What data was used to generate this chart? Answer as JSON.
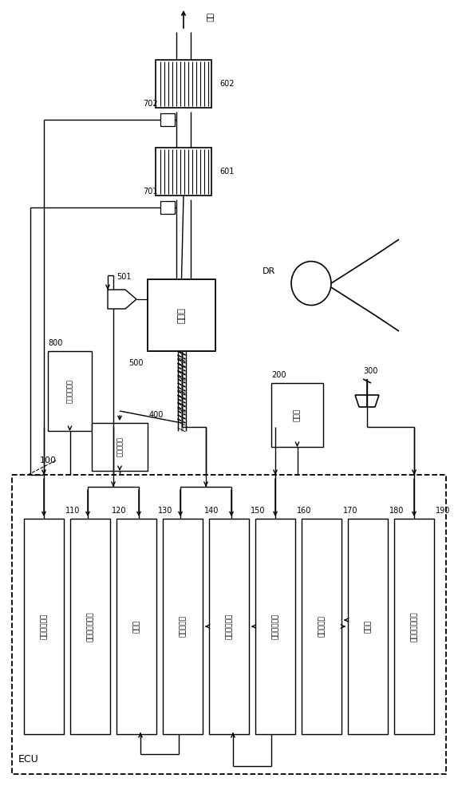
{
  "bg_color": "#ffffff",
  "lc": "#000000",
  "figsize": [
    5.74,
    10.0
  ],
  "dpi": 100,
  "ecu_label": "ECU",
  "ecu_number": "100",
  "modules": [
    {
      "id": "110",
      "label": "空燃比识别部"
    },
    {
      "id": "120",
      "label": "燃料喷射控制部"
    },
    {
      "id": "130",
      "label": "监测部"
    },
    {
      "id": "140",
      "label": "变速控制部"
    },
    {
      "id": "150",
      "label": "增大量判定部"
    },
    {
      "id": "160",
      "label": "临界量设定部"
    },
    {
      "id": "170",
      "label": "结果存储部"
    },
    {
      "id": "180",
      "label": "诊断部"
    },
    {
      "id": "190",
      "label": "车辆状态检测部"
    }
  ],
  "engine_label": "发动机",
  "accel_label": "加速度检测器",
  "trans_label": "有级变速器",
  "display_label": "显示部",
  "exhaust_label": "废气",
  "dr_label": "DR",
  "n500": "500",
  "n501": "501",
  "n800": "800",
  "n400": "400",
  "n200": "200",
  "n300": "300",
  "n601": "601",
  "n602": "602",
  "n701": "701",
  "n702": "702"
}
